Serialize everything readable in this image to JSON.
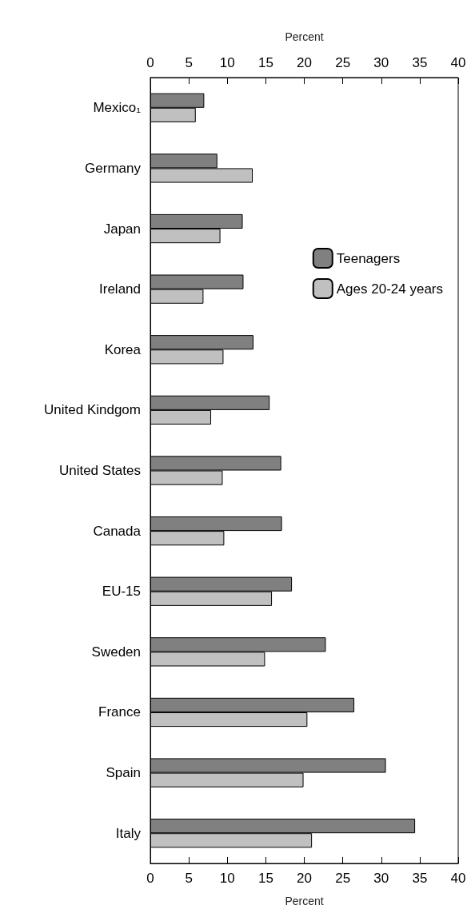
{
  "chart_data": {
    "type": "bar",
    "orientation": "horizontal",
    "xlabel": "Percent",
    "x2label": "Percent",
    "categories": [
      "Mexico₁",
      "Germany",
      "Japan",
      "Ireland",
      "Korea",
      "United Kindgom",
      "United States",
      "Canada",
      "EU-15",
      "Sweden",
      "France",
      "Spain",
      "Italy"
    ],
    "series": [
      {
        "name": "Teenagers",
        "color": "#808080",
        "values": [
          7.0,
          8.7,
          12.0,
          12.1,
          13.4,
          15.5,
          17.0,
          17.1,
          18.4,
          22.8,
          26.5,
          30.6,
          34.4
        ]
      },
      {
        "name": "Ages 20-24 years",
        "color": "#c0c0c0",
        "values": [
          5.9,
          13.3,
          9.1,
          6.9,
          9.5,
          7.9,
          9.4,
          9.6,
          15.8,
          14.9,
          20.4,
          19.9,
          21.0
        ]
      }
    ],
    "xlim": [
      0,
      40
    ],
    "xticks": [
      0,
      5,
      10,
      15,
      20,
      25,
      30,
      35,
      40
    ],
    "x2lim": [
      0,
      40
    ],
    "x2ticks": [
      0,
      5,
      10,
      15,
      20,
      25,
      30,
      35,
      40
    ],
    "grid": false,
    "legend": "top right"
  }
}
